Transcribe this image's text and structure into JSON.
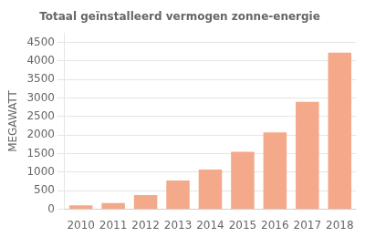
{
  "chart_data": {
    "type": "bar",
    "title": "Totaal geïnstalleerd vermogen zonne-energie",
    "categories": [
      "2010",
      "2011",
      "2012",
      "2013",
      "2014",
      "2015",
      "2016",
      "2017",
      "2018"
    ],
    "values": [
      110,
      170,
      385,
      775,
      1075,
      1550,
      2075,
      2900,
      4225
    ],
    "color": "#F4A98A",
    "ylabel": "MEGAWATT",
    "ylim": [
      0,
      4750
    ],
    "yticks": [
      0,
      500,
      1000,
      1500,
      2000,
      2500,
      3000,
      3500,
      4000,
      4500
    ],
    "grid": true
  }
}
